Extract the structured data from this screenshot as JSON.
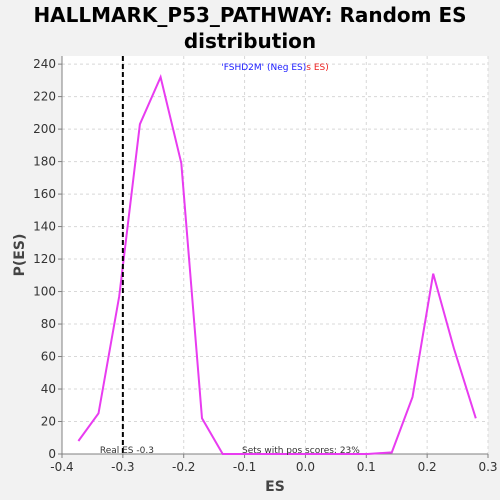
{
  "chart_data": {
    "type": "line",
    "title_line1": "HALLMARK_P53_PATHWAY: Random ES",
    "title_line2": "distribution",
    "xlabel": "ES",
    "ylabel": "P(ES)",
    "xlim": [
      -0.4,
      0.3
    ],
    "ylim": [
      0,
      245
    ],
    "xticks": [
      -0.4,
      -0.3,
      -0.2,
      -0.1,
      0.0,
      0.1,
      0.2,
      0.3
    ],
    "xtick_labels": [
      "-0.4",
      "-0.3",
      "-0.2",
      "-0.1",
      "0.0",
      "0.1",
      "0.2",
      "0.3"
    ],
    "yticks": [
      0,
      20,
      40,
      60,
      80,
      100,
      120,
      140,
      160,
      180,
      200,
      220,
      240
    ],
    "ytick_labels": [
      "0",
      "20",
      "40",
      "60",
      "80",
      "100",
      "120",
      "140",
      "160",
      "180",
      "200",
      "220",
      "240"
    ],
    "grid": true,
    "series": [
      {
        "color": "#e83cf0",
        "x": [
          -0.373,
          -0.34,
          -0.306,
          -0.272,
          -0.238,
          -0.204,
          -0.17,
          -0.136,
          -0.102,
          -0.068,
          -0.034,
          0.0,
          0.034,
          0.068,
          0.102,
          0.142,
          0.176,
          0.21,
          0.244,
          0.28
        ],
        "y": [
          8,
          25,
          97,
          203,
          232,
          179,
          22,
          0,
          0,
          0,
          0,
          0,
          0,
          0,
          0,
          1,
          35,
          111,
          65,
          22
        ]
      }
    ],
    "real_es": -0.3,
    "real_es_label": "Real ES -0.3",
    "pos_scores_label": "Sets with pos scores: 23%",
    "legend_text_blue": "'FSHD2M' (Neg ES)",
    "legend_text_red": "s ES)"
  },
  "colors": {
    "background": "#f2f2f2",
    "plot_background": "#ffffff",
    "series": "#e83cf0",
    "grid": "#d8d8d8",
    "legend_blue": "#1a1aff",
    "legend_red": "#ee2222"
  }
}
